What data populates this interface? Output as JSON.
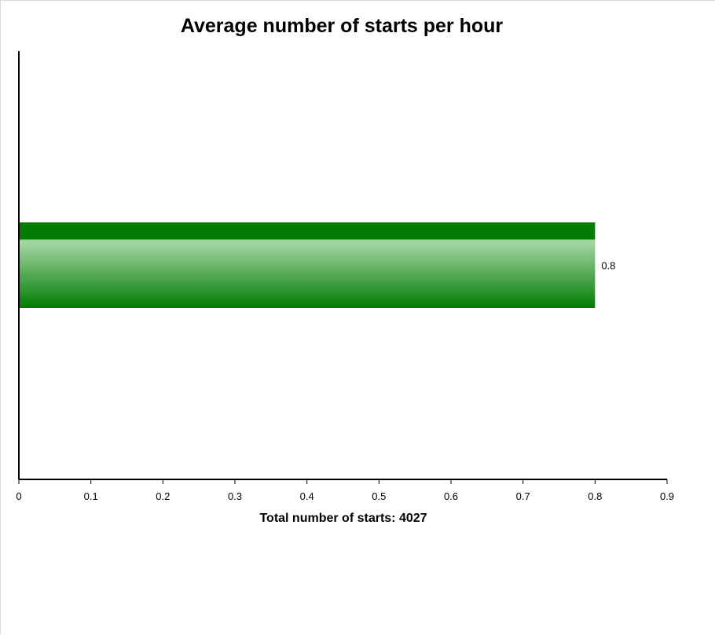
{
  "chart_data": {
    "type": "bar",
    "orientation": "horizontal",
    "title": "Average number of starts per hour",
    "xlabel": "Total number of starts: 4027",
    "ylabel": "",
    "categories": [
      ""
    ],
    "values": [
      0.8
    ],
    "data_labels": [
      "0.8"
    ],
    "xlim": [
      0,
      0.9
    ],
    "x_ticks": [
      0,
      0.1,
      0.2,
      0.3,
      0.4,
      0.5,
      0.6,
      0.7,
      0.8,
      0.9
    ],
    "x_tick_labels": [
      "0",
      "0.1",
      "0.2",
      "0.3",
      "0.4",
      "0.5",
      "0.6",
      "0.7",
      "0.8",
      "0.9"
    ],
    "grid": false,
    "legend": "none",
    "colors": {
      "bar_dark": "#027c02",
      "bar_light": "#a9d8a9",
      "axis": "#000000"
    }
  }
}
